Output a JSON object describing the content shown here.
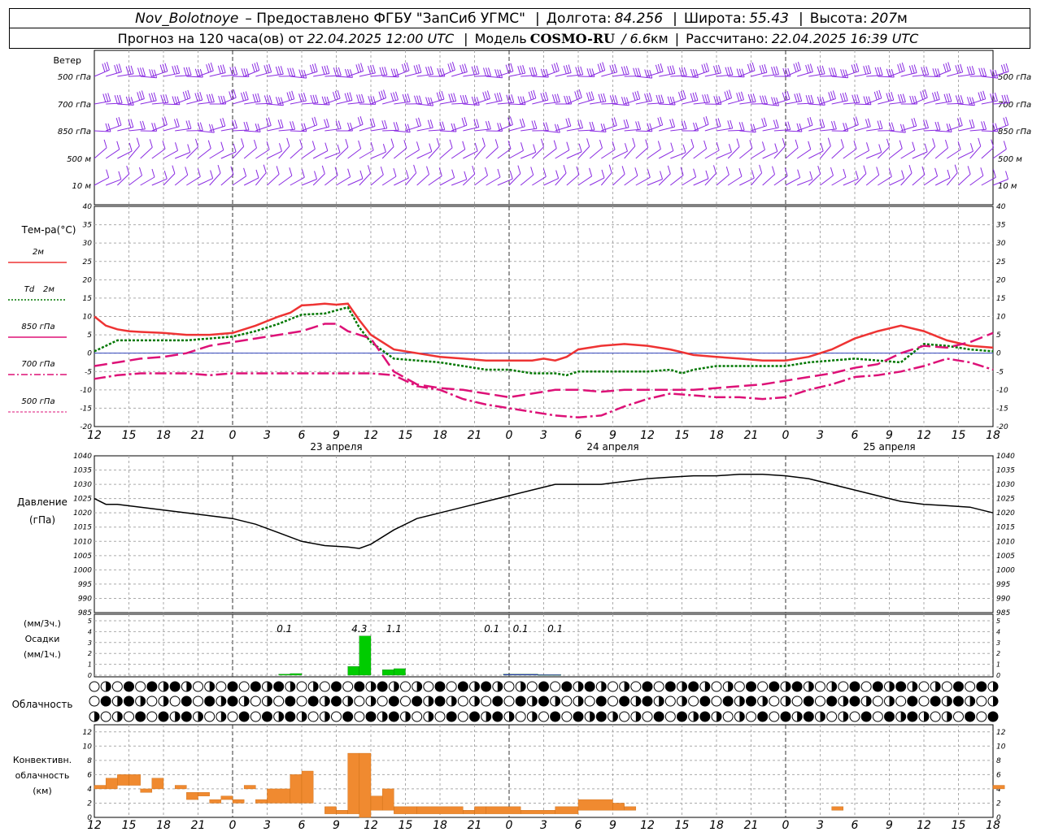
{
  "header": {
    "station": "Nov_Bolotnoye",
    "provider": "– Предоставлено ФГБУ \"ЗапСиб УГМС\"",
    "lon_label": "Долгота:",
    "lon": "84.256",
    "lat_label": "Широта:",
    "lat": "55.43",
    "alt_label": "Высота:",
    "alt": "207",
    "alt_unit": "м",
    "forecast_label": "Прогноз на 120 часа(ов) от",
    "forecast_time": "22.04.2025 12:00 UTC",
    "model_label": "Модель",
    "model": "COSMO-RU",
    "model_res": "/ 6.6",
    "model_res_unit": "км",
    "calc_label": "Рассчитано:",
    "calc_time": "22.04.2025 16:39 UTC"
  },
  "colors": {
    "wind": "#8a2be2",
    "t2m": "#ee3333",
    "td2m": "#007700",
    "t850": "#dd1177",
    "t700": "#dd1177",
    "t500": "#dd1177",
    "pressure": "#000000",
    "precip_rain": "#00cc00",
    "precip_other": "#3333cc",
    "convective": "#f08a30"
  },
  "wind_panel": {
    "title": "Ветер",
    "levels": [
      "500 гПа",
      "700 гПа",
      "850 гПа",
      "500 м",
      "10 м"
    ]
  },
  "temp_panel": {
    "title": "Тем-ра(°C)",
    "legend": [
      {
        "key": "t2m",
        "label": "2м"
      },
      {
        "key": "td2m",
        "label_it": "Td",
        "label": "2м"
      },
      {
        "key": "t850",
        "label": "850 гПа"
      },
      {
        "key": "t700",
        "label": "700 гПа"
      },
      {
        "key": "t500",
        "label": "500 гПа"
      }
    ],
    "yticks": [
      "40",
      "35",
      "30",
      "25",
      "20",
      "15",
      "10",
      "5",
      "0",
      "-5",
      "-10",
      "-15",
      "-20"
    ]
  },
  "x_axis": {
    "hour_labels": [
      "12",
      "15",
      "18",
      "21",
      "0",
      "3",
      "6",
      "9",
      "12",
      "15",
      "18",
      "21",
      "0",
      "3",
      "6",
      "9",
      "12",
      "15",
      "18",
      "21",
      "0",
      "3",
      "6",
      "9",
      "12",
      "15",
      "18"
    ],
    "date_labels": [
      {
        "text": "23 апреля",
        "at_hour": 21
      },
      {
        "text": "24 апреля",
        "at_hour": 45
      },
      {
        "text": "25 апреля",
        "at_hour": 69
      }
    ]
  },
  "pressure_panel": {
    "title": "Давление",
    "unit": "(гПа)",
    "yticks": [
      "1040",
      "1035",
      "1030",
      "1025",
      "1020",
      "1015",
      "1010",
      "1005",
      "1000",
      "995",
      "990",
      "985"
    ]
  },
  "precip_panel": {
    "unit1": "(мм/3ч.)",
    "title": "Осадки",
    "unit2": "(мм/1ч.)",
    "yticks": [
      "5",
      "4",
      "3",
      "2",
      "1",
      "0"
    ],
    "annotations": [
      {
        "text": "0.1",
        "at_hour": 16.5
      },
      {
        "text": "4.3",
        "at_hour": 23
      },
      {
        "text": "1.1",
        "at_hour": 26
      },
      {
        "text": "0.1",
        "at_hour": 34.5
      },
      {
        "text": "0.1",
        "at_hour": 37
      },
      {
        "text": "0.1",
        "at_hour": 40
      }
    ]
  },
  "cloud_panel": {
    "title": "Облачность"
  },
  "conv_panel": {
    "title_lines": [
      "Конвективн.",
      "облачность",
      "(км)"
    ],
    "yticks": [
      "12",
      "10",
      "8",
      "6",
      "4",
      "2",
      "0"
    ]
  },
  "chart_data": [
    {
      "type": "line",
      "name": "temperature",
      "x_unit": "hours from 22.04.2025 12:00 UTC",
      "ylim": [
        -20,
        40
      ],
      "series": [
        {
          "name": "2м",
          "x": [
            0,
            1,
            2,
            3,
            4,
            6,
            8,
            10,
            12,
            14,
            16,
            17,
            18,
            19,
            20,
            21,
            22,
            23,
            24,
            25,
            26,
            28,
            30,
            32,
            34,
            36,
            38,
            39,
            40,
            41,
            42,
            44,
            46,
            48,
            50,
            52,
            54,
            56,
            58,
            60,
            62,
            64,
            66,
            68,
            70,
            72,
            74,
            76,
            78
          ],
          "y": [
            10,
            7.5,
            6.5,
            6,
            5.8,
            5.5,
            5,
            5,
            5.5,
            7.5,
            10,
            11,
            13,
            13.2,
            13.5,
            13.2,
            13.5,
            9,
            5,
            3,
            1,
            0,
            -1,
            -1.5,
            -2,
            -2,
            -2,
            -1.5,
            -2,
            -1,
            1,
            2,
            2.5,
            2,
            1,
            -0.5,
            -1,
            -1.5,
            -2,
            -2,
            -1,
            1,
            4,
            6,
            7.5,
            6,
            3.5,
            2,
            1.5
          ]
        },
        {
          "name": "Td 2м",
          "x": [
            0,
            2,
            4,
            6,
            8,
            10,
            12,
            14,
            16,
            18,
            20,
            22,
            23,
            24,
            26,
            28,
            30,
            32,
            34,
            36,
            38,
            39,
            40,
            41,
            42,
            44,
            46,
            48,
            50,
            51,
            52,
            54,
            56,
            58,
            60,
            62,
            64,
            66,
            68,
            70,
            72,
            74,
            76,
            78
          ],
          "y": [
            0.5,
            3.5,
            3.5,
            3.5,
            3.5,
            4,
            4.5,
            6,
            8,
            10.5,
            10.8,
            12.5,
            7,
            3,
            -1.5,
            -2,
            -2.5,
            -3.5,
            -4.5,
            -4.5,
            -5.5,
            -5.5,
            -5.5,
            -6,
            -5,
            -5,
            -5,
            -5,
            -4.5,
            -5.5,
            -4.5,
            -3.5,
            -3.5,
            -3.5,
            -3.5,
            -2.5,
            -2,
            -1.5,
            -2,
            -2.5,
            2.5,
            2,
            1,
            0.5
          ]
        },
        {
          "name": "850 гПа",
          "x": [
            0,
            2,
            4,
            6,
            8,
            10,
            12,
            14,
            16,
            18,
            20,
            21,
            22,
            24,
            26,
            28,
            30,
            32,
            34,
            36,
            38,
            40,
            42,
            44,
            46,
            48,
            50,
            52,
            54,
            56,
            58,
            60,
            62,
            64,
            66,
            68,
            70,
            72,
            74,
            76,
            78
          ],
          "y": [
            -3.5,
            -2.5,
            -1.5,
            -1,
            0,
            2,
            3,
            4,
            5,
            6,
            8,
            8,
            6,
            4,
            -5,
            -8.5,
            -9.5,
            -10,
            -11,
            -12,
            -11,
            -10,
            -10,
            -10.5,
            -10,
            -10,
            -10,
            -10,
            -9.5,
            -9,
            -8.5,
            -7.5,
            -6.5,
            -5.5,
            -4,
            -3,
            0,
            2,
            1.5,
            3,
            5.5
          ]
        },
        {
          "name": "700 гПа",
          "x": [
            0,
            2,
            4,
            6,
            8,
            10,
            12,
            14,
            16,
            18,
            20,
            22,
            24,
            26,
            28,
            30,
            32,
            34,
            36,
            38,
            40,
            42,
            44,
            46,
            48,
            50,
            52,
            54,
            56,
            58,
            60,
            62,
            64,
            66,
            68,
            70,
            72,
            74,
            76,
            78
          ],
          "y": [
            -7,
            -6,
            -5.5,
            -5.5,
            -5.5,
            -6,
            -5.5,
            -5.5,
            -5.5,
            -5.5,
            -5.5,
            -5.5,
            -5.5,
            -6,
            -9,
            -10,
            -12.5,
            -14,
            -15,
            -16,
            -17,
            -17.5,
            -17,
            -14.5,
            -12.5,
            -11,
            -11.5,
            -12,
            -12,
            -12.5,
            -12,
            -10,
            -8.5,
            -6.5,
            -6,
            -5,
            -3.5,
            -1.5,
            -2.5,
            -4.5
          ]
        },
        {
          "name": "500 гПа",
          "x": [
            0,
            78
          ],
          "y": [
            -20,
            -20
          ]
        }
      ]
    },
    {
      "type": "line",
      "name": "pressure",
      "ylim": [
        985,
        1040
      ],
      "series": [
        {
          "name": "Давление",
          "x": [
            0,
            1,
            2,
            4,
            6,
            8,
            10,
            12,
            14,
            16,
            18,
            20,
            22,
            23,
            24,
            26,
            28,
            30,
            32,
            34,
            36,
            38,
            40,
            42,
            44,
            46,
            48,
            50,
            52,
            54,
            56,
            58,
            60,
            62,
            64,
            66,
            68,
            70,
            72,
            74,
            76,
            78
          ],
          "y": [
            1025,
            1023,
            1023,
            1022,
            1021,
            1020,
            1019,
            1018,
            1016,
            1013,
            1010,
            1008.5,
            1008,
            1007.5,
            1009,
            1014,
            1018,
            1020,
            1022,
            1024,
            1026,
            1028,
            1030,
            1030,
            1030,
            1031,
            1032,
            1032.5,
            1033,
            1033,
            1033.5,
            1033.5,
            1033,
            1032,
            1030,
            1028,
            1026,
            1024,
            1023,
            1022.5,
            1022,
            1020
          ]
        }
      ]
    },
    {
      "type": "bar",
      "name": "precipitation",
      "ylim": [
        0,
        5
      ],
      "bars": [
        {
          "x": 16,
          "w": 1,
          "y": 0.1,
          "kind": "rain"
        },
        {
          "x": 17,
          "w": 1,
          "y": 0.15,
          "kind": "rain"
        },
        {
          "x": 22,
          "w": 1,
          "y": 0.8,
          "kind": "rain"
        },
        {
          "x": 23,
          "w": 1,
          "y": 3.6,
          "kind": "rain"
        },
        {
          "x": 25,
          "w": 1,
          "y": 0.5,
          "kind": "rain"
        },
        {
          "x": 26,
          "w": 1,
          "y": 0.6,
          "kind": "rain"
        },
        {
          "x": 35.5,
          "w": 3,
          "y": 0.1,
          "kind": "other"
        },
        {
          "x": 38.5,
          "w": 2,
          "y": 0.05,
          "kind": "other"
        }
      ]
    },
    {
      "type": "bar",
      "name": "convective_cloud",
      "ylim": [
        0,
        13
      ],
      "bars": [
        {
          "x": 0,
          "w": 1,
          "y0": 4,
          "y1": 4.5
        },
        {
          "x": 1,
          "w": 1,
          "y0": 4,
          "y1": 5.5
        },
        {
          "x": 2,
          "w": 1,
          "y0": 4.5,
          "y1": 6
        },
        {
          "x": 3,
          "w": 1,
          "y0": 4.5,
          "y1": 6
        },
        {
          "x": 4,
          "w": 1,
          "y0": 3.5,
          "y1": 4
        },
        {
          "x": 5,
          "w": 1,
          "y0": 4,
          "y1": 5.5
        },
        {
          "x": 7,
          "w": 1,
          "y0": 4,
          "y1": 4.5
        },
        {
          "x": 8,
          "w": 1,
          "y0": 2.5,
          "y1": 3.5
        },
        {
          "x": 9,
          "w": 1,
          "y0": 3,
          "y1": 3.5
        },
        {
          "x": 10,
          "w": 1,
          "y0": 2,
          "y1": 2.5
        },
        {
          "x": 11,
          "w": 1,
          "y0": 2.5,
          "y1": 3
        },
        {
          "x": 12,
          "w": 1,
          "y0": 2,
          "y1": 2.5
        },
        {
          "x": 13,
          "w": 1,
          "y0": 4,
          "y1": 4.5
        },
        {
          "x": 14,
          "w": 1,
          "y0": 2,
          "y1": 2.5
        },
        {
          "x": 15,
          "w": 2,
          "y0": 2,
          "y1": 4
        },
        {
          "x": 17,
          "w": 1,
          "y0": 2,
          "y1": 6
        },
        {
          "x": 18,
          "w": 1,
          "y0": 2,
          "y1": 6.5
        },
        {
          "x": 20,
          "w": 1,
          "y0": 0.5,
          "y1": 1.5
        },
        {
          "x": 21,
          "w": 1,
          "y0": 0.5,
          "y1": 1
        },
        {
          "x": 22,
          "w": 1,
          "y0": 0.5,
          "y1": 9
        },
        {
          "x": 23,
          "w": 1,
          "y0": 0,
          "y1": 9
        },
        {
          "x": 24,
          "w": 1,
          "y0": 1,
          "y1": 3
        },
        {
          "x": 25,
          "w": 1,
          "y0": 1,
          "y1": 4
        },
        {
          "x": 26,
          "w": 2,
          "y0": 0.5,
          "y1": 1.5
        },
        {
          "x": 28,
          "w": 4,
          "y0": 0.5,
          "y1": 1.5
        },
        {
          "x": 32,
          "w": 1,
          "y0": 0.5,
          "y1": 1
        },
        {
          "x": 33,
          "w": 1,
          "y0": 0.5,
          "y1": 1.5
        },
        {
          "x": 34,
          "w": 3,
          "y0": 0.5,
          "y1": 1.5
        },
        {
          "x": 37,
          "w": 3,
          "y0": 0.5,
          "y1": 1
        },
        {
          "x": 40,
          "w": 2,
          "y0": 0.5,
          "y1": 1.5
        },
        {
          "x": 42,
          "w": 3,
          "y0": 1,
          "y1": 2.5
        },
        {
          "x": 45,
          "w": 1,
          "y0": 1,
          "y1": 2
        },
        {
          "x": 46,
          "w": 1,
          "y0": 1,
          "y1": 1.5
        },
        {
          "x": 64,
          "w": 1,
          "y0": 1,
          "y1": 1.5
        },
        {
          "x": 78,
          "w": 1,
          "y0": 4,
          "y1": 4.5
        }
      ]
    }
  ]
}
